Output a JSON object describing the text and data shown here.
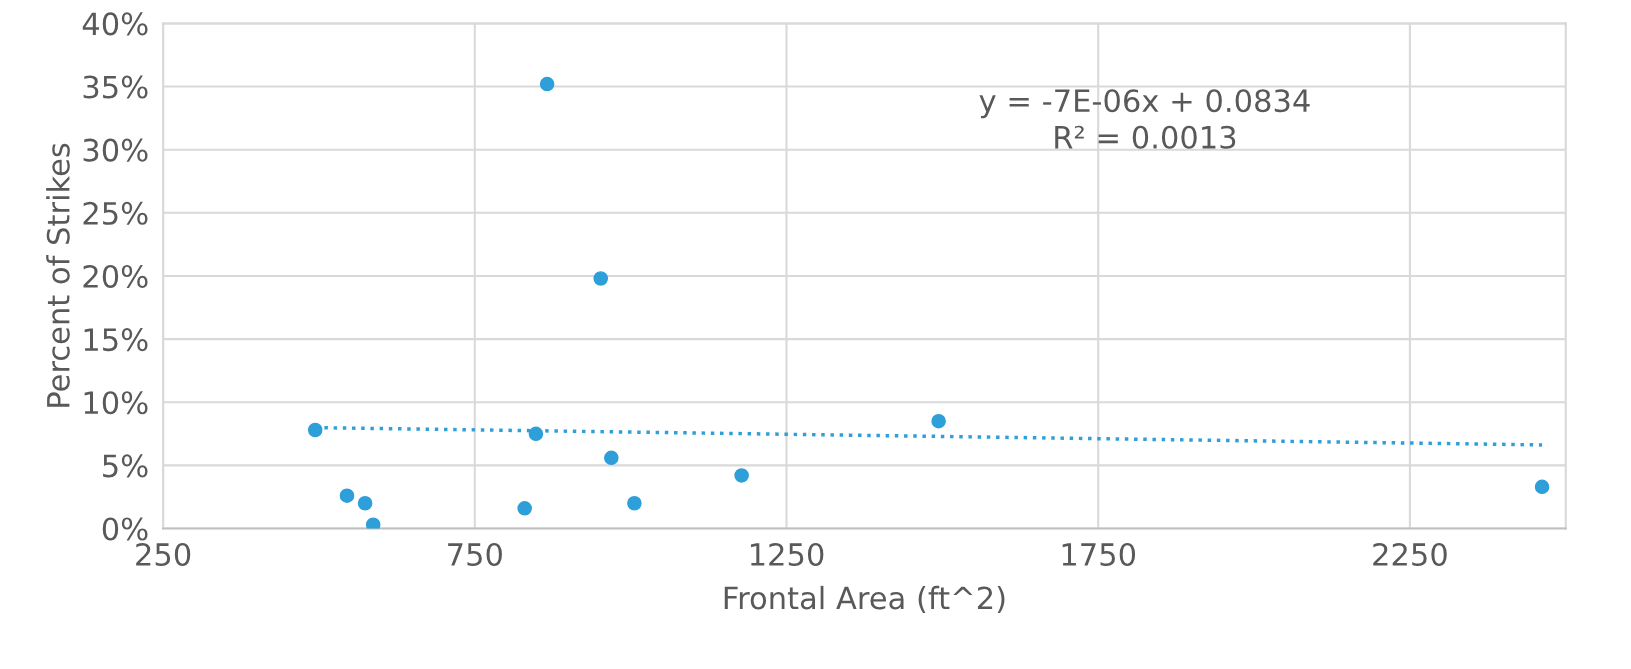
{
  "chart_data": {
    "type": "scatter",
    "xlabel": "Frontal Area (ft^2)",
    "ylabel": "Percent of Strikes",
    "x": [
      494,
      545,
      574,
      587,
      830,
      848,
      866,
      952,
      969,
      1006,
      1178,
      1494,
      2462
    ],
    "series": [
      {
        "color": "#2e9fd8",
        "marker": "circle",
        "values": [
          7.8,
          2.6,
          2.0,
          0.3,
          1.6,
          7.5,
          35.2,
          19.8,
          5.6,
          2.0,
          4.2,
          8.5,
          3.3
        ]
      },
      {
        "type": "line",
        "color": "#2e9fd8",
        "line_style": "dotted",
        "x": [
          494,
          2462
        ],
        "values": [
          7.99,
          6.62
        ]
      }
    ],
    "annotations": [
      "y = -7E-06x + 0.0834\nR² = 0.0013"
    ],
    "xlim": [
      250,
      2500
    ],
    "xticks": [
      250,
      750,
      1250,
      1750,
      2250
    ],
    "ylim": [
      0,
      40
    ],
    "yticks": [
      {
        "value": 0,
        "label": "0%"
      },
      {
        "value": 5,
        "label": "5%"
      },
      {
        "value": 10,
        "label": "10%"
      },
      {
        "value": 15,
        "label": "15%"
      },
      {
        "value": 20,
        "label": "20%"
      },
      {
        "value": 25,
        "label": "25%"
      },
      {
        "value": 30,
        "label": "30%"
      },
      {
        "value": 35,
        "label": "35%"
      },
      {
        "value": 40,
        "label": "40%"
      }
    ],
    "grid": true
  }
}
